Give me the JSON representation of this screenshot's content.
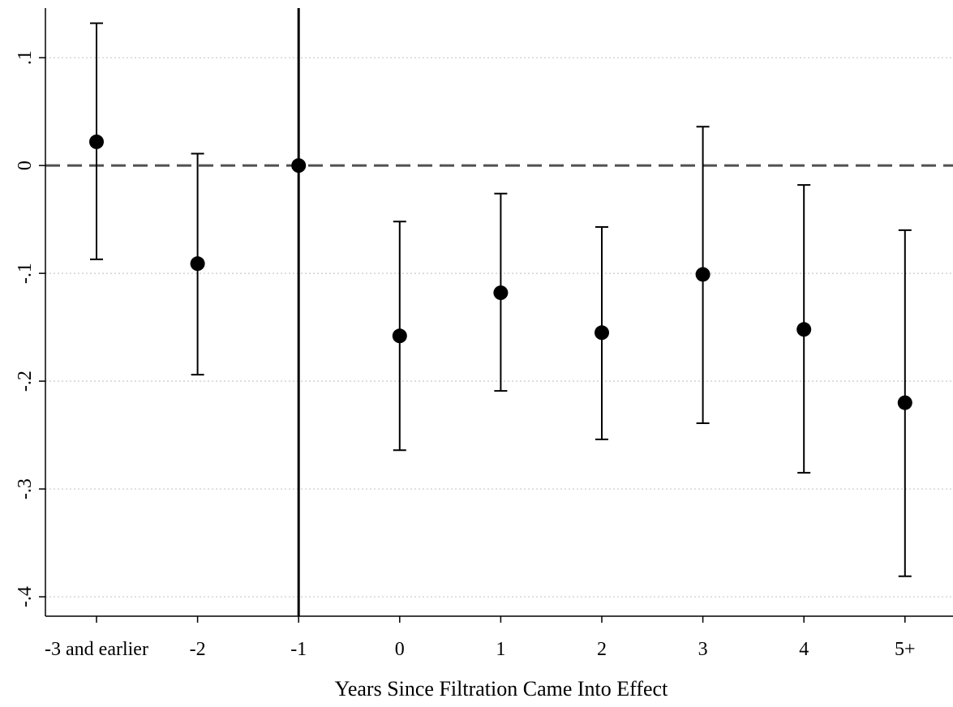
{
  "chart_data": {
    "type": "scatter",
    "title": "",
    "xlabel": "Years Since Filtration Came Into Effect",
    "ylabel": "",
    "categories": [
      "-3 and earlier",
      "-2",
      "-1",
      "0",
      "1",
      "2",
      "3",
      "4",
      "5+"
    ],
    "y_ticks": [
      {
        "value": 0.1,
        "label": ".1"
      },
      {
        "value": 0,
        "label": "0"
      },
      {
        "value": -0.1,
        "label": "-.1"
      },
      {
        "value": -0.2,
        "label": "-.2"
      },
      {
        "value": -0.3,
        "label": "-.3"
      },
      {
        "value": -0.4,
        "label": "-.4"
      }
    ],
    "ylim": [
      -0.418,
      0.146
    ],
    "grid": true,
    "reference_line": {
      "y": 0,
      "style": "dashed"
    },
    "event_line": {
      "category": "-1",
      "style": "solid"
    },
    "series": [
      {
        "points": [
          {
            "category": "-3 and earlier",
            "estimate": 0.022,
            "ci_low": -0.087,
            "ci_high": 0.132
          },
          {
            "category": "-2",
            "estimate": -0.091,
            "ci_low": -0.194,
            "ci_high": 0.011
          },
          {
            "category": "-1",
            "estimate": 0.0,
            "ci_low": null,
            "ci_high": null
          },
          {
            "category": "0",
            "estimate": -0.158,
            "ci_low": -0.264,
            "ci_high": -0.052
          },
          {
            "category": "1",
            "estimate": -0.118,
            "ci_low": -0.209,
            "ci_high": -0.026
          },
          {
            "category": "2",
            "estimate": -0.155,
            "ci_low": -0.254,
            "ci_high": -0.057
          },
          {
            "category": "3",
            "estimate": -0.101,
            "ci_low": -0.239,
            "ci_high": 0.036
          },
          {
            "category": "4",
            "estimate": -0.152,
            "ci_low": -0.285,
            "ci_high": -0.018
          },
          {
            "category": "5+",
            "estimate": -0.22,
            "ci_low": -0.381,
            "ci_high": -0.06
          }
        ]
      }
    ],
    "colors": {
      "points": "#000000",
      "grid": "#c8c8c8",
      "reference": "#505050"
    }
  }
}
